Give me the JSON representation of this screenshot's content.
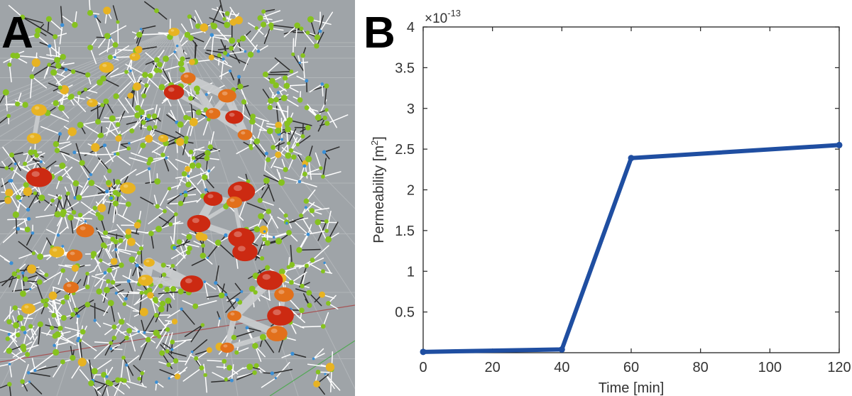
{
  "figure": {
    "panel_a_label": "A",
    "panel_b_label": "B",
    "panel_a_icon": "pore-network-3d-icon",
    "colors": {
      "line": "#1f4ea1",
      "background_a": "#9fa4a8",
      "node_red": "#cc2a12",
      "node_orange": "#e2701b",
      "node_yellow": "#e8b322",
      "node_green": "#86c21f",
      "node_blue": "#3a8fd6",
      "edge_white": "#ffffff",
      "edge_grey": "#c9cbcd"
    }
  },
  "chart_data": {
    "type": "line",
    "title": "",
    "xlabel": "Time [min]",
    "ylabel_main": "Permeability [m",
    "ylabel_sup": "2",
    "ylabel_end": "]",
    "exponent_base": "×10",
    "exponent_power": "-13",
    "xlim": [
      0,
      120
    ],
    "ylim": [
      0,
      4
    ],
    "x_ticks": [
      0,
      20,
      40,
      60,
      80,
      100,
      120
    ],
    "x_tick_labels": [
      "0",
      "20",
      "40",
      "60",
      "80",
      "100",
      "120"
    ],
    "y_ticks": [
      0.5,
      1,
      1.5,
      2,
      2.5,
      3,
      3.5,
      4
    ],
    "y_tick_labels": [
      "0.5",
      "1",
      "1.5",
      "2",
      "2.5",
      "3",
      "3.5",
      "4"
    ],
    "grid": false,
    "series": [
      {
        "x": [
          0,
          40,
          60,
          120
        ],
        "y": [
          0.01,
          0.04,
          2.39,
          2.55
        ]
      }
    ]
  }
}
